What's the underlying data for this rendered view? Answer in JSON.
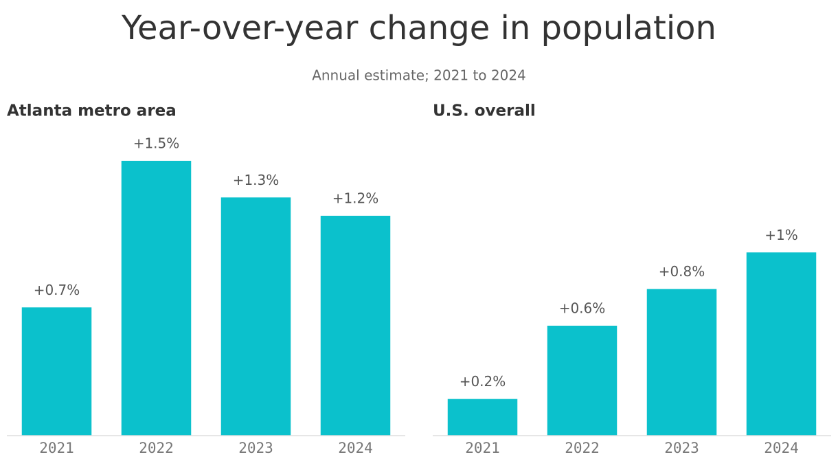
{
  "header": {
    "title": "Year-over-year change in population",
    "subtitle": "Annual estimate; 2021 to 2024"
  },
  "chart_data": [
    {
      "type": "bar",
      "title": "Atlanta metro area",
      "categories": [
        "2021",
        "2022",
        "2023",
        "2024"
      ],
      "values": [
        0.7,
        1.5,
        1.3,
        1.2
      ],
      "value_labels": [
        "+0.7%",
        "+1.5%",
        "+1.3%",
        "+1.2%"
      ],
      "color": "#0bc1cc",
      "ylim": [
        0,
        1.5
      ]
    },
    {
      "type": "bar",
      "title": "U.S. overall",
      "categories": [
        "2021",
        "2022",
        "2023",
        "2024"
      ],
      "values": [
        0.2,
        0.6,
        0.8,
        1
      ],
      "value_labels": [
        "+0.2%",
        "+0.6%",
        "+0.8%",
        "+1%"
      ],
      "color": "#0bc1cc",
      "ylim": [
        0,
        1.5
      ]
    }
  ]
}
